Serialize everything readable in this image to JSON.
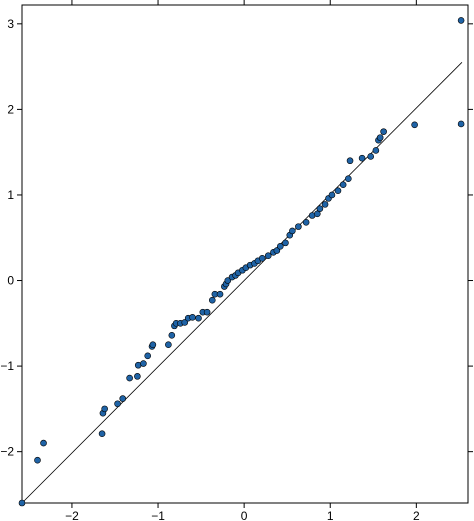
{
  "chart_data": {
    "type": "scatter",
    "x": [
      -2.58,
      -2.4,
      -2.33,
      -1.65,
      -1.64,
      -1.62,
      -1.47,
      -1.41,
      -1.33,
      -1.24,
      -1.23,
      -1.17,
      -1.12,
      -1.07,
      -1.06,
      -0.88,
      -0.84,
      -0.81,
      -0.79,
      -0.74,
      -0.69,
      -0.65,
      -0.6,
      -0.53,
      -0.48,
      -0.43,
      -0.37,
      -0.34,
      -0.28,
      -0.23,
      -0.21,
      -0.19,
      -0.14,
      -0.1,
      -0.07,
      -0.02,
      0.02,
      0.07,
      0.12,
      0.16,
      0.21,
      0.28,
      0.34,
      0.38,
      0.42,
      0.48,
      0.53,
      0.56,
      0.63,
      0.72,
      0.79,
      0.85,
      0.88,
      0.94,
      0.98,
      1.02,
      1.09,
      1.15,
      1.21,
      1.23,
      1.37,
      1.47,
      1.53,
      1.56,
      1.58,
      1.62,
      1.98,
      2.52,
      2.52
    ],
    "values": [
      -2.6,
      -2.1,
      -1.9,
      -1.79,
      -1.55,
      -1.5,
      -1.44,
      -1.38,
      -1.14,
      -1.12,
      -0.99,
      -0.97,
      -0.88,
      -0.77,
      -0.75,
      -0.75,
      -0.64,
      -0.53,
      -0.5,
      -0.5,
      -0.49,
      -0.44,
      -0.43,
      -0.44,
      -0.37,
      -0.37,
      -0.23,
      -0.16,
      -0.16,
      -0.07,
      -0.04,
      0.0,
      0.04,
      0.06,
      0.09,
      0.12,
      0.15,
      0.18,
      0.2,
      0.23,
      0.26,
      0.29,
      0.33,
      0.35,
      0.4,
      0.44,
      0.53,
      0.58,
      0.63,
      0.68,
      0.76,
      0.78,
      0.84,
      0.89,
      0.96,
      1.0,
      1.05,
      1.12,
      1.19,
      1.4,
      1.43,
      1.45,
      1.52,
      1.64,
      1.67,
      1.74,
      1.82,
      1.83,
      3.04
    ],
    "color": "#1f63a6",
    "reference_line": {
      "x": [
        -2.58,
        2.53
      ],
      "y": [
        -2.6,
        2.55
      ]
    },
    "xlim": [
      -2.58,
      2.6
    ],
    "ylim": [
      -2.6,
      3.22
    ],
    "xticks": [
      {
        "value": -2,
        "label": "−2"
      },
      {
        "value": -1,
        "label": "−1"
      },
      0,
      1,
      2
    ],
    "yticks": [
      {
        "value": -2,
        "label": "−2"
      },
      {
        "value": -1,
        "label": "−1"
      },
      0,
      1,
      2,
      3
    ]
  }
}
